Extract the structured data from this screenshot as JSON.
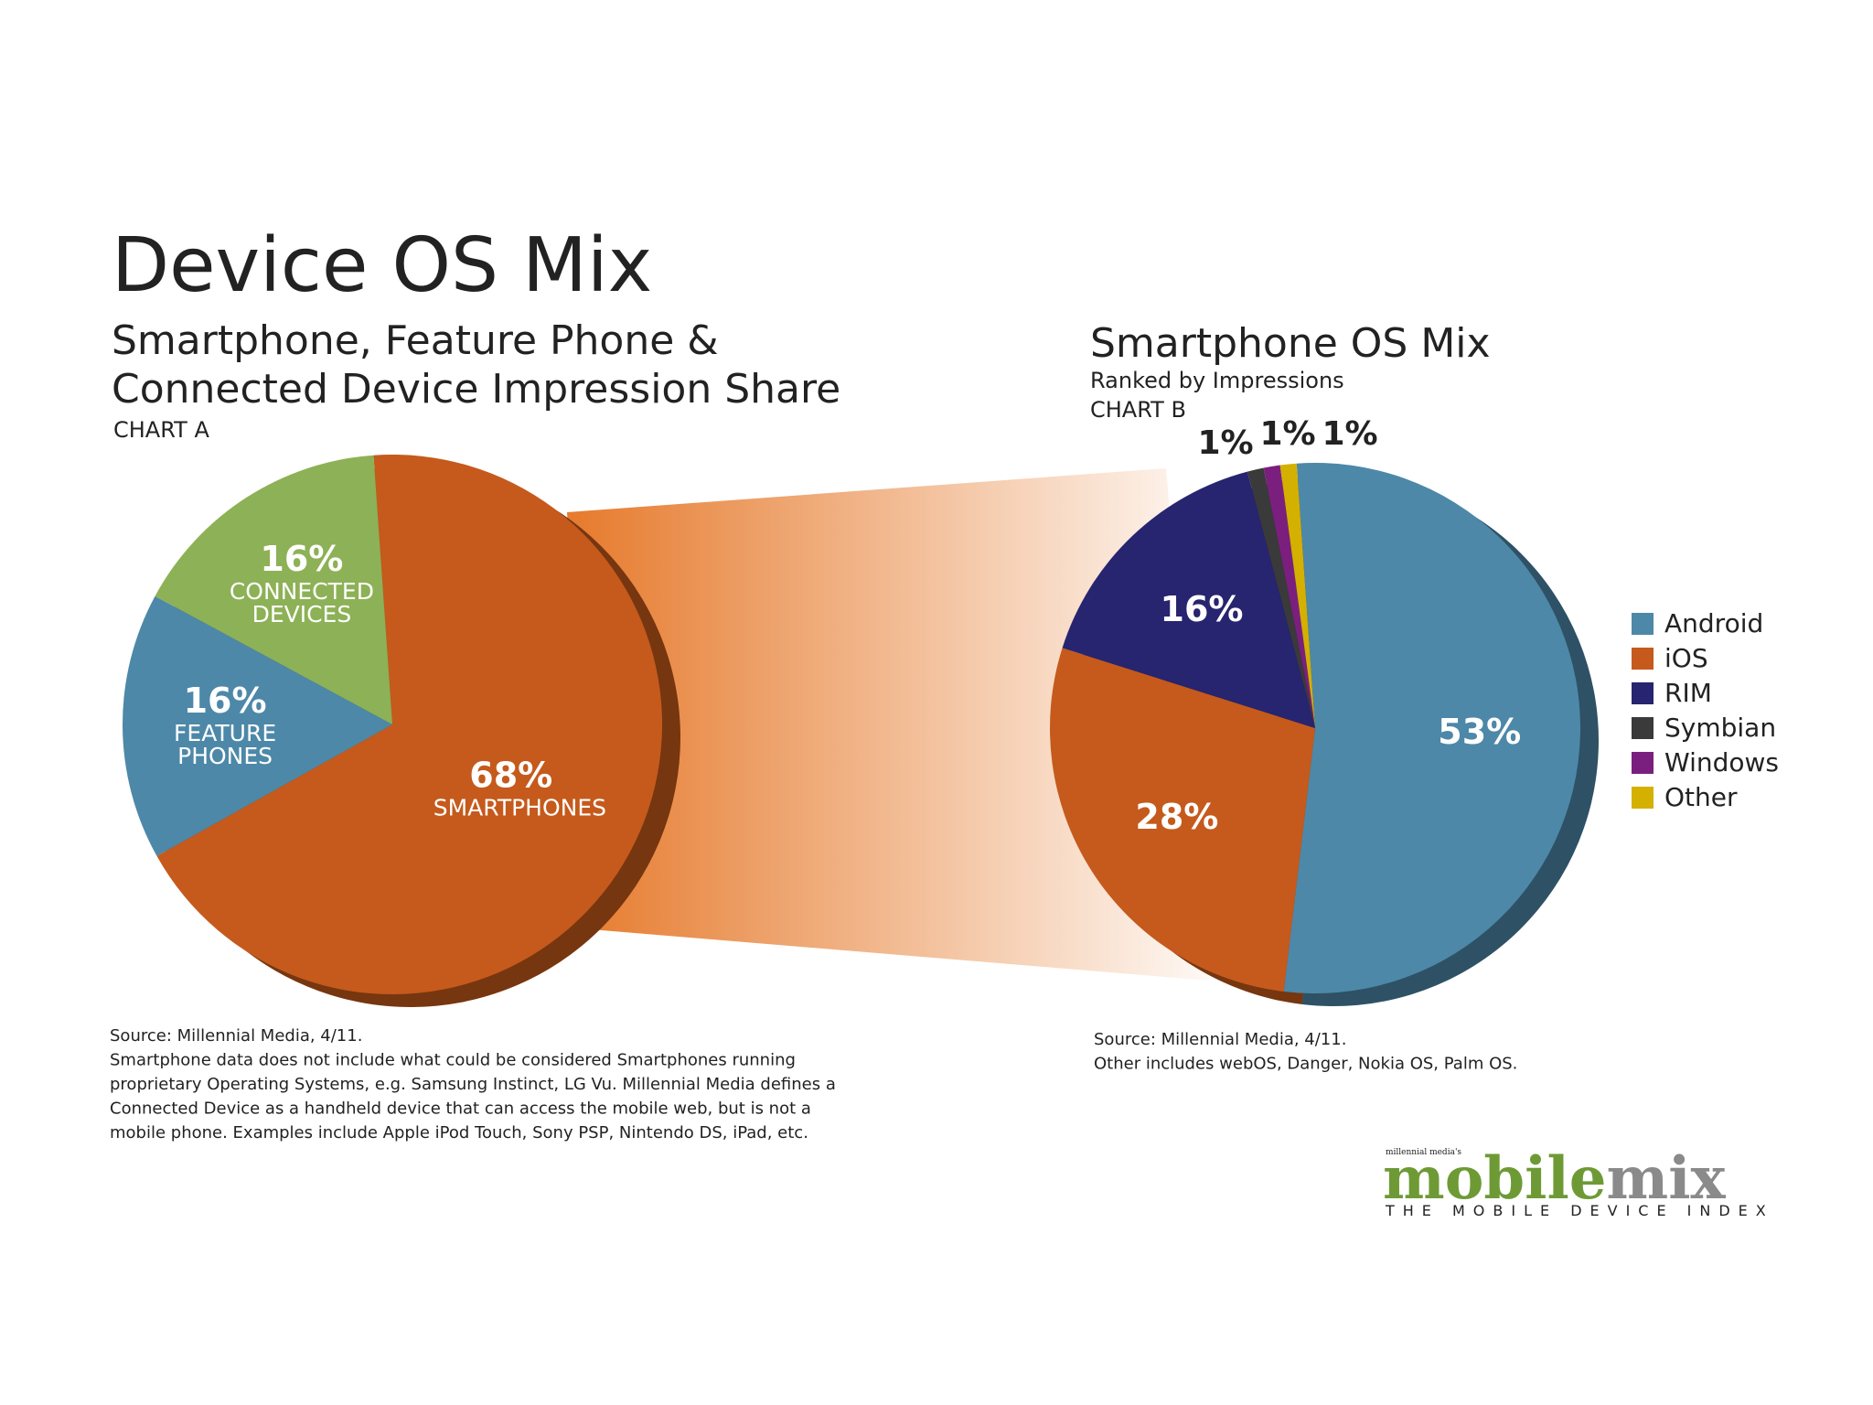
{
  "header": {
    "title": "Device OS Mix"
  },
  "chart_data": [
    {
      "type": "pie",
      "title": [
        "Smartphone, Feature Phone &",
        "Connected Device Impression Share"
      ],
      "subtitle": "CHART A",
      "categories": [
        "SMARTPHONES",
        "FEATURE PHONES",
        "CONNECTED DEVICES"
      ],
      "values": [
        68,
        16,
        16
      ],
      "value_labels": [
        "68%",
        "16%",
        "16%"
      ],
      "colors": [
        "#c55a1c",
        "#4d88a8",
        "#8db156"
      ],
      "notes": [
        "Source: Millennial Media, 4/11.",
        "Smartphone data does not include what could be considered Smartphones running",
        "proprietary Operating Systems, e.g. Samsung Instinct, LG Vu. Millennial Media defines a",
        "Connected Device as a handheld device that can access the mobile web, but is not a",
        "mobile phone. Examples include Apple iPod Touch, Sony PSP, Nintendo DS, iPad, etc."
      ]
    },
    {
      "type": "pie",
      "title": "Smartphone OS Mix",
      "subtitle": "Ranked by Impressions",
      "chart_label": "CHART B",
      "categories": [
        "Android",
        "iOS",
        "RIM",
        "Symbian",
        "Windows",
        "Other"
      ],
      "values": [
        53,
        28,
        16,
        1,
        1,
        1
      ],
      "value_labels": [
        "53%",
        "28%",
        "16%",
        "1%",
        "1%",
        "1%"
      ],
      "colors": [
        "#4d88a8",
        "#c55a1c",
        "#272470",
        "#3a3a3a",
        "#7b1f7e",
        "#d4b000"
      ],
      "legend": "right",
      "notes": [
        "Source: Millennial Media, 4/11.",
        "Other includes webOS, Danger, Nokia OS, Palm OS."
      ]
    }
  ],
  "logo": {
    "prefix": "millennial media's",
    "word1": "mobile",
    "word2": "mix",
    "tagline": "THE MOBILE DEVICE INDEX"
  }
}
